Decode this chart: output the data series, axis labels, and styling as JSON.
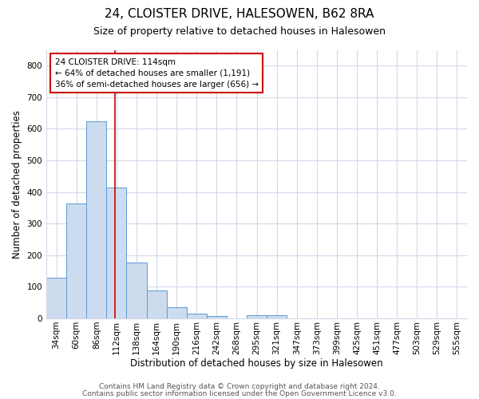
{
  "title": "24, CLOISTER DRIVE, HALESOWEN, B62 8RA",
  "subtitle": "Size of property relative to detached houses in Halesowen",
  "xlabel": "Distribution of detached houses by size in Halesowen",
  "ylabel": "Number of detached properties",
  "categories": [
    "34sqm",
    "60sqm",
    "86sqm",
    "112sqm",
    "138sqm",
    "164sqm",
    "190sqm",
    "216sqm",
    "242sqm",
    "268sqm",
    "295sqm",
    "321sqm",
    "347sqm",
    "373sqm",
    "399sqm",
    "425sqm",
    "451sqm",
    "477sqm",
    "503sqm",
    "529sqm",
    "555sqm"
  ],
  "values": [
    128,
    365,
    625,
    415,
    178,
    88,
    35,
    15,
    8,
    0,
    10,
    10,
    0,
    0,
    0,
    0,
    0,
    0,
    0,
    0,
    0
  ],
  "bar_color": "#ccdcee",
  "bar_edge_color": "#5b9bd5",
  "vline_color": "#cc0000",
  "annotation_line1": "24 CLOISTER DRIVE: 114sqm",
  "annotation_line2": "← 64% of detached houses are smaller (1,191)",
  "annotation_line3": "36% of semi-detached houses are larger (656) →",
  "annotation_box_color": "white",
  "annotation_box_edge_color": "#cc0000",
  "ylim": [
    0,
    850
  ],
  "yticks": [
    0,
    100,
    200,
    300,
    400,
    500,
    600,
    700,
    800
  ],
  "footer1": "Contains HM Land Registry data © Crown copyright and database right 2024.",
  "footer2": "Contains public sector information licensed under the Open Government Licence v3.0.",
  "bg_color": "#ffffff",
  "plot_bg_color": "#ffffff",
  "grid_color": "#d0d8e8",
  "title_fontsize": 11,
  "subtitle_fontsize": 9,
  "tick_fontsize": 7.5,
  "footer_fontsize": 6.5
}
